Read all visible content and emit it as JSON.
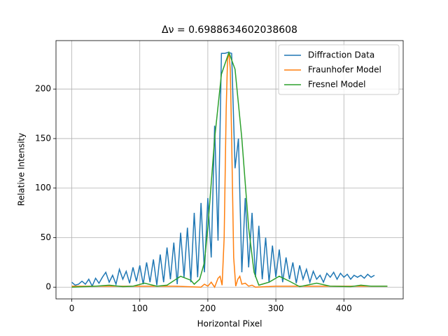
{
  "chart_data": {
    "type": "line",
    "title": "Δν = 0.6988634602038608",
    "x_label": "Horizontal Pixel",
    "y_label": "Relative Intensity",
    "xlim": [
      -23.2,
      487.2
    ],
    "ylim": [
      -11.85,
      248.9
    ],
    "xticks": [
      0,
      100,
      200,
      300,
      400
    ],
    "yticks": [
      0,
      50,
      100,
      150,
      200
    ],
    "grid": true,
    "legend": "upper right",
    "series": [
      {
        "name": "Diffraction Data",
        "color": "#1f77b4",
        "x": [
          0,
          5,
          10,
          15,
          20,
          25,
          30,
          35,
          40,
          45,
          50,
          55,
          60,
          65,
          70,
          75,
          80,
          85,
          90,
          95,
          100,
          105,
          110,
          115,
          120,
          125,
          130,
          135,
          140,
          145,
          150,
          155,
          160,
          165,
          170,
          175,
          180,
          185,
          190,
          195,
          200,
          205,
          210,
          215,
          220,
          225,
          230,
          235,
          240,
          245,
          250,
          255,
          260,
          265,
          270,
          275,
          280,
          285,
          290,
          295,
          300,
          305,
          310,
          315,
          320,
          325,
          330,
          335,
          340,
          345,
          350,
          355,
          360,
          365,
          370,
          375,
          380,
          385,
          390,
          395,
          400,
          405,
          410,
          415,
          420,
          425,
          430,
          435,
          440,
          445
        ],
        "values": [
          5,
          2,
          3,
          6,
          3,
          8,
          1,
          9,
          4,
          10,
          15,
          5,
          12,
          3,
          18,
          8,
          16,
          4,
          20,
          6,
          22,
          3,
          25,
          5,
          28,
          2,
          33,
          5,
          40,
          8,
          45,
          3,
          55,
          10,
          60,
          5,
          75,
          10,
          85,
          15,
          90,
          30,
          163,
          47,
          236,
          236,
          237,
          236,
          120,
          150,
          15,
          90,
          20,
          75,
          10,
          62,
          8,
          50,
          5,
          42,
          10,
          38,
          5,
          30,
          8,
          25,
          4,
          22,
          8,
          18,
          5,
          16,
          8,
          12,
          5,
          14,
          10,
          15,
          8,
          14,
          10,
          13,
          8,
          12,
          10,
          12,
          9,
          13,
          10,
          12
        ]
      },
      {
        "name": "Fraunhofer Model",
        "color": "#ff7f0e",
        "x": [
          0,
          50,
          100,
          150,
          190,
          195,
          200,
          205,
          210,
          215,
          218,
          221,
          224,
          227,
          229,
          231,
          233,
          235,
          238,
          241,
          244,
          247,
          250,
          255,
          260,
          265,
          270,
          300,
          350,
          400,
          464
        ],
        "values": [
          1,
          1,
          1,
          1,
          0,
          3,
          1,
          5,
          0,
          9,
          11,
          2,
          50,
          180,
          230,
          237,
          220,
          150,
          30,
          1,
          8,
          11,
          3,
          4,
          1,
          2,
          0,
          1,
          1,
          1,
          1
        ]
      },
      {
        "name": "Fresnel Model",
        "color": "#2ca02c",
        "x": [
          0,
          20,
          35,
          55,
          75,
          90,
          107,
          125,
          140,
          160,
          175,
          180,
          188,
          195,
          200,
          210,
          220,
          231,
          240,
          250,
          260,
          268,
          275,
          290,
          305,
          320,
          335,
          360,
          380,
          410,
          425,
          440,
          464
        ],
        "values": [
          0,
          0.5,
          1,
          2,
          0.5,
          1,
          4,
          1,
          2,
          11,
          7,
          3,
          8,
          25,
          60,
          150,
          215,
          237,
          220,
          150,
          60,
          15,
          2,
          5,
          11,
          6,
          0.5,
          4,
          1,
          0.5,
          2,
          1,
          1
        ]
      }
    ]
  }
}
